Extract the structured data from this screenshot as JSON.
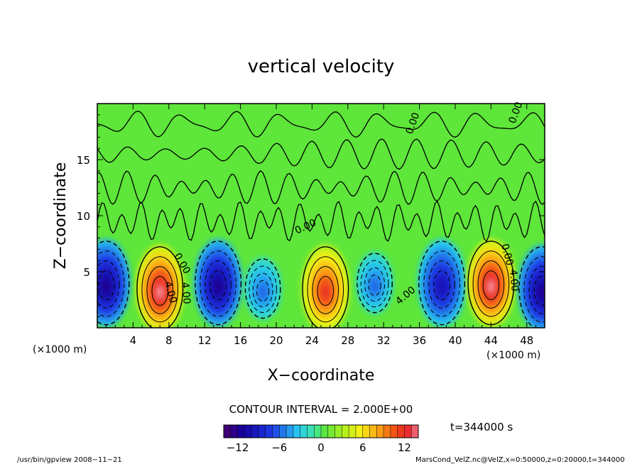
{
  "chart_data": {
    "type": "contour",
    "title": "vertical velocity",
    "xlabel": "X−coordinate",
    "ylabel": "Z−coordinate",
    "x_unit": "(×1000 m)",
    "y_unit": "(×1000 m)",
    "xlim": [
      0,
      50
    ],
    "ylim": [
      0,
      20
    ],
    "x_ticks": [
      4,
      8,
      12,
      16,
      20,
      24,
      28,
      32,
      36,
      40,
      44,
      48
    ],
    "y_ticks": [
      5,
      10,
      15
    ],
    "contour_interval_text": "CONTOUR INTERVAL = 2.000E+00",
    "time_label": "t=344000 s",
    "colorbar": {
      "range": [
        -14,
        14
      ],
      "ticks": [
        -12,
        -6,
        0,
        6,
        12
      ]
    },
    "contour_labels": [
      "0.00",
      "4.00"
    ],
    "features": [
      {
        "type": "updraft",
        "x": 7,
        "z": 3.5,
        "max": 14
      },
      {
        "type": "downdraft",
        "x": 1,
        "z": 4,
        "min": -12
      },
      {
        "type": "downdraft",
        "x": 13.5,
        "z": 4,
        "min": -12
      },
      {
        "type": "weak-downdraft",
        "x": 18.5,
        "z": 3.5,
        "min": -6
      },
      {
        "type": "updraft",
        "x": 25.5,
        "z": 3.5,
        "max": 12
      },
      {
        "type": "weak-downdraft",
        "x": 31,
        "z": 4,
        "min": -6
      },
      {
        "type": "downdraft",
        "x": 38.5,
        "z": 4,
        "min": -10
      },
      {
        "type": "updraft",
        "x": 44,
        "z": 4,
        "max": 14
      },
      {
        "type": "downdraft",
        "x": 49.7,
        "z": 3.5,
        "min": -12
      }
    ]
  },
  "footer": {
    "left": "/usr/bin/gpview   2008−11−21",
    "right": "MarsCond_VelZ.nc@VelZ,x=0:50000,z=0:20000,t=344000"
  }
}
